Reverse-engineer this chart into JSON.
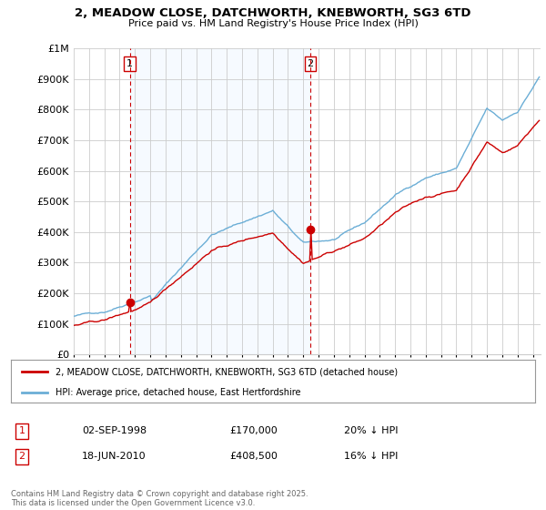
{
  "title": "2, MEADOW CLOSE, DATCHWORTH, KNEBWORTH, SG3 6TD",
  "subtitle": "Price paid vs. HM Land Registry's House Price Index (HPI)",
  "legend_entry1": "2, MEADOW CLOSE, DATCHWORTH, KNEBWORTH, SG3 6TD (detached house)",
  "legend_entry2": "HPI: Average price, detached house, East Hertfordshire",
  "sale1_date": "02-SEP-1998",
  "sale1_price": "£170,000",
  "sale1_hpi": "20% ↓ HPI",
  "sale1_year": 1998.67,
  "sale1_value": 170000,
  "sale2_date": "18-JUN-2010",
  "sale2_price": "£408,500",
  "sale2_hpi": "16% ↓ HPI",
  "sale2_year": 2010.46,
  "sale2_value": 408500,
  "footer": "Contains HM Land Registry data © Crown copyright and database right 2025.\nThis data is licensed under the Open Government Licence v3.0.",
  "hpi_color": "#6baed6",
  "price_color": "#cc0000",
  "vline_color": "#cc0000",
  "fill_color": "#ddeeff",
  "background_color": "#ffffff",
  "grid_color": "#cccccc",
  "ylim": [
    0,
    1000000
  ],
  "xlim_start": 1995,
  "xlim_end": 2025.5
}
